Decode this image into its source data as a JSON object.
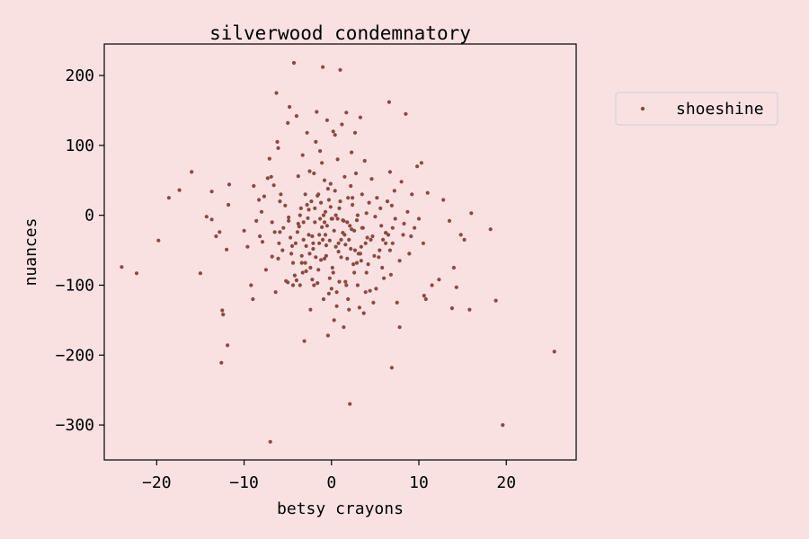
{
  "chart_data": {
    "type": "scatter",
    "title": "silverwood condemnatory",
    "xlabel": "betsy crayons",
    "ylabel": "nuances",
    "xlim": [
      -26,
      28
    ],
    "ylim": [
      -350,
      245
    ],
    "xticks": [
      -20,
      -10,
      0,
      10,
      20
    ],
    "yticks": [
      -300,
      -200,
      -100,
      0,
      100,
      200
    ],
    "xtick_labels": [
      "−20",
      "−10",
      "0",
      "10",
      "20"
    ],
    "ytick_labels": [
      "−300",
      "−200",
      "−100",
      "0",
      "100",
      "200"
    ],
    "grid": false,
    "legend": {
      "placement": "outside-right-top",
      "entries": [
        "shoeshine"
      ]
    },
    "colors": {
      "series": "#8b4a40",
      "background": "#f9e1e2"
    },
    "series": [
      {
        "name": "shoeshine",
        "points": [
          [
            -24.0,
            -74
          ],
          [
            -22.3,
            -83
          ],
          [
            -19.8,
            -36
          ],
          [
            -18.6,
            25
          ],
          [
            -17.4,
            36
          ],
          [
            -16.0,
            62
          ],
          [
            -15.0,
            -83
          ],
          [
            -14.3,
            -2
          ],
          [
            -13.7,
            -6
          ],
          [
            -13.7,
            34
          ],
          [
            -13.2,
            -30
          ],
          [
            -12.8,
            -24
          ],
          [
            -12.6,
            -211
          ],
          [
            -12.5,
            -136
          ],
          [
            -12.4,
            -142
          ],
          [
            -12.0,
            -49
          ],
          [
            -11.9,
            -186
          ],
          [
            -11.8,
            15
          ],
          [
            -11.7,
            44
          ],
          [
            -10.0,
            -22
          ],
          [
            -9.2,
            -100
          ],
          [
            -9.0,
            -120
          ],
          [
            -8.9,
            42
          ],
          [
            -8.6,
            -8
          ],
          [
            -8.2,
            -30
          ],
          [
            -8.0,
            5
          ],
          [
            -7.9,
            -38
          ],
          [
            -7.5,
            -78
          ],
          [
            -7.3,
            53
          ],
          [
            -7.1,
            81
          ],
          [
            -7.0,
            -324
          ],
          [
            -6.9,
            55
          ],
          [
            -6.8,
            -59
          ],
          [
            -6.6,
            43
          ],
          [
            -6.5,
            -24
          ],
          [
            -6.4,
            -110
          ],
          [
            -6.3,
            175
          ],
          [
            -6.2,
            105
          ],
          [
            -6.1,
            96
          ],
          [
            -6.0,
            -40
          ],
          [
            -5.9,
            20
          ],
          [
            -5.8,
            30
          ],
          [
            -5.5,
            -18
          ],
          [
            -5.3,
            14
          ],
          [
            -5.2,
            -94
          ],
          [
            -5.0,
            132
          ],
          [
            -4.9,
            -3
          ],
          [
            -4.8,
            155
          ],
          [
            -4.7,
            -32
          ],
          [
            -4.5,
            -44
          ],
          [
            -4.4,
            -68
          ],
          [
            -4.3,
            218
          ],
          [
            -4.2,
            -86
          ],
          [
            -4.1,
            -40
          ],
          [
            -4.0,
            142
          ],
          [
            -3.9,
            -24
          ],
          [
            -3.8,
            56
          ],
          [
            -3.7,
            -16
          ],
          [
            -3.6,
            -100
          ],
          [
            -3.5,
            10
          ],
          [
            -3.4,
            -58
          ],
          [
            -3.3,
            86
          ],
          [
            -3.2,
            -35
          ],
          [
            -3.1,
            -180
          ],
          [
            -3.0,
            30
          ],
          [
            -2.9,
            -80
          ],
          [
            -2.8,
            118
          ],
          [
            -2.7,
            -4
          ],
          [
            -2.6,
            8
          ],
          [
            -2.5,
            -55
          ],
          [
            -2.4,
            -135
          ],
          [
            -2.3,
            20
          ],
          [
            -2.2,
            -92
          ],
          [
            -2.1,
            -40
          ],
          [
            -2.0,
            60
          ],
          [
            -1.9,
            -10
          ],
          [
            -1.8,
            105
          ],
          [
            -1.7,
            148
          ],
          [
            -1.6,
            -97
          ],
          [
            -1.5,
            30
          ],
          [
            -1.4,
            -28
          ],
          [
            -1.3,
            92
          ],
          [
            -1.2,
            -64
          ],
          [
            -1.1,
            -17
          ],
          [
            -1.0,
            212
          ],
          [
            -0.9,
            -120
          ],
          [
            -0.8,
            50
          ],
          [
            -0.7,
            5
          ],
          [
            -0.6,
            -43
          ],
          [
            -0.5,
            136
          ],
          [
            -0.4,
            -172
          ],
          [
            -0.3,
            22
          ],
          [
            -0.2,
            -90
          ],
          [
            -0.1,
            45
          ],
          [
            0.0,
            -5
          ],
          [
            0.1,
            -75
          ],
          [
            0.2,
            120
          ],
          [
            0.3,
            -150
          ],
          [
            0.4,
            35
          ],
          [
            0.5,
            0
          ],
          [
            0.6,
            -110
          ],
          [
            0.7,
            80
          ],
          [
            0.8,
            -40
          ],
          [
            0.9,
            10
          ],
          [
            1.0,
            208
          ],
          [
            1.1,
            -60
          ],
          [
            1.2,
            130
          ],
          [
            1.3,
            -25
          ],
          [
            1.4,
            -160
          ],
          [
            1.5,
            55
          ],
          [
            1.6,
            -95
          ],
          [
            1.7,
            147
          ],
          [
            1.8,
            -10
          ],
          [
            1.9,
            25
          ],
          [
            2.0,
            -135
          ],
          [
            2.1,
            -270
          ],
          [
            2.2,
            -48
          ],
          [
            2.3,
            90
          ],
          [
            2.4,
            15
          ],
          [
            2.5,
            -70
          ],
          [
            2.6,
            -22
          ],
          [
            2.7,
            118
          ],
          [
            2.8,
            60
          ],
          [
            2.9,
            -7
          ],
          [
            3.0,
            -100
          ],
          [
            3.2,
            -132
          ],
          [
            3.3,
            140
          ],
          [
            3.4,
            -45
          ],
          [
            3.5,
            30
          ],
          [
            3.6,
            -18
          ],
          [
            3.8,
            78
          ],
          [
            3.9,
            -110
          ],
          [
            4.0,
            3
          ],
          [
            4.2,
            -70
          ],
          [
            4.3,
            18
          ],
          [
            4.5,
            -35
          ],
          [
            4.6,
            52
          ],
          [
            4.8,
            -125
          ],
          [
            5.0,
            -2
          ],
          [
            5.2,
            25
          ],
          [
            5.4,
            -60
          ],
          [
            5.6,
            10
          ],
          [
            5.8,
            -75
          ],
          [
            6.0,
            -90
          ],
          [
            6.2,
            -25
          ],
          [
            6.4,
            20
          ],
          [
            6.6,
            162
          ],
          [
            6.7,
            62
          ],
          [
            6.8,
            -85
          ],
          [
            6.9,
            -218
          ],
          [
            7.0,
            -40
          ],
          [
            7.2,
            35
          ],
          [
            7.3,
            -5
          ],
          [
            7.5,
            -125
          ],
          [
            7.8,
            -160
          ],
          [
            8.0,
            48
          ],
          [
            8.2,
            -28
          ],
          [
            8.5,
            145
          ],
          [
            8.7,
            5
          ],
          [
            8.9,
            -55
          ],
          [
            9.2,
            30
          ],
          [
            9.5,
            -18
          ],
          [
            9.8,
            70
          ],
          [
            10.0,
            -5
          ],
          [
            10.3,
            75
          ],
          [
            10.5,
            -40
          ],
          [
            10.8,
            -120
          ],
          [
            11.0,
            32
          ],
          [
            11.5,
            -100
          ],
          [
            12.3,
            -92
          ],
          [
            12.8,
            22
          ],
          [
            13.5,
            -8
          ],
          [
            13.8,
            -133
          ],
          [
            14.0,
            -75
          ],
          [
            14.3,
            -103
          ],
          [
            14.8,
            -28
          ],
          [
            15.2,
            -35
          ],
          [
            15.8,
            -135
          ],
          [
            16.0,
            3
          ],
          [
            18.2,
            -20
          ],
          [
            18.8,
            -122
          ],
          [
            19.6,
            -300
          ],
          [
            25.5,
            -195
          ],
          [
            10.6,
            -115
          ],
          [
            3.1,
            -55
          ],
          [
            -2.5,
            63
          ],
          [
            1.3,
            -7
          ],
          [
            -0.8,
            -62
          ],
          [
            4.1,
            -32
          ],
          [
            -5.0,
            -96
          ],
          [
            8.3,
            -12
          ],
          [
            -9.6,
            -45
          ],
          [
            0.4,
            115
          ],
          [
            6.9,
            14
          ],
          [
            -3.2,
            -10
          ],
          [
            2.2,
            42
          ],
          [
            -1.1,
            75
          ],
          [
            5.5,
            -50
          ],
          [
            -6.8,
            -10
          ],
          [
            1.9,
            -120
          ],
          [
            -0.2,
            -36
          ],
          [
            3.7,
            -140
          ],
          [
            -4.6,
            -55
          ],
          [
            7.8,
            -65
          ],
          [
            -2.1,
            -48
          ],
          [
            0.9,
            -95
          ],
          [
            9.1,
            -30
          ],
          [
            -7.7,
            27
          ],
          [
            4.4,
            -108
          ],
          [
            -1.6,
            28
          ],
          [
            2.9,
            -68
          ],
          [
            -3.4,
            -68
          ],
          [
            6.2,
            -40
          ],
          [
            0.6,
            -130
          ],
          [
            -5.9,
            -24
          ],
          [
            1.6,
            -42
          ],
          [
            -0.7,
            -28
          ],
          [
            3.9,
            -40
          ],
          [
            -2.9,
            -44
          ],
          [
            5.1,
            -105
          ],
          [
            -1.3,
            -5
          ],
          [
            2.1,
            -15
          ],
          [
            -4.0,
            -93
          ],
          [
            7.0,
            -18
          ],
          [
            0.2,
            -82
          ],
          [
            -6.1,
            -62
          ],
          [
            1.1,
            -35
          ],
          [
            -2.4,
            -75
          ],
          [
            4.7,
            -30
          ],
          [
            -0.5,
            -15
          ],
          [
            3.3,
            -55
          ],
          [
            -8.3,
            22
          ],
          [
            0.8,
            -52
          ],
          [
            -1.9,
            10
          ],
          [
            2.6,
            -82
          ],
          [
            -3.6,
            0
          ],
          [
            6.7,
            -50
          ],
          [
            0.0,
            -105
          ],
          [
            -5.6,
            -50
          ],
          [
            1.4,
            -8
          ],
          [
            -0.4,
            38
          ],
          [
            2.4,
            25
          ],
          [
            -1.5,
            -78
          ],
          [
            3.5,
            -18
          ],
          [
            -2.8,
            15
          ],
          [
            5.7,
            -15
          ],
          [
            -0.9,
            0
          ],
          [
            1.8,
            -62
          ],
          [
            -4.9,
            -8
          ],
          [
            0.3,
            -22
          ],
          [
            -1.2,
            18
          ],
          [
            2.0,
            -35
          ],
          [
            -3.8,
            -12
          ],
          [
            4.9,
            -58
          ],
          [
            -0.1,
            12
          ],
          [
            1.5,
            -28
          ],
          [
            -2.0,
            -100
          ],
          [
            3.0,
            0
          ],
          [
            -0.6,
            -58
          ],
          [
            0.7,
            -5
          ],
          [
            -1.8,
            -60
          ],
          [
            2.7,
            -50
          ],
          [
            -3.0,
            -68
          ],
          [
            5.9,
            -35
          ],
          [
            -0.3,
            -112
          ],
          [
            1.0,
            20
          ],
          [
            -2.2,
            -30
          ],
          [
            4.0,
            -82
          ],
          [
            -1.0,
            -35
          ],
          [
            0.5,
            -45
          ],
          [
            -4.4,
            -100
          ],
          [
            1.7,
            -100
          ],
          [
            -0.8,
            -10
          ],
          [
            3.4,
            -65
          ],
          [
            -2.6,
            -28
          ],
          [
            0.1,
            -5
          ],
          [
            2.3,
            -20
          ],
          [
            -1.4,
            -40
          ],
          [
            6.5,
            -28
          ],
          [
            -3.3,
            -82
          ]
        ]
      }
    ]
  }
}
